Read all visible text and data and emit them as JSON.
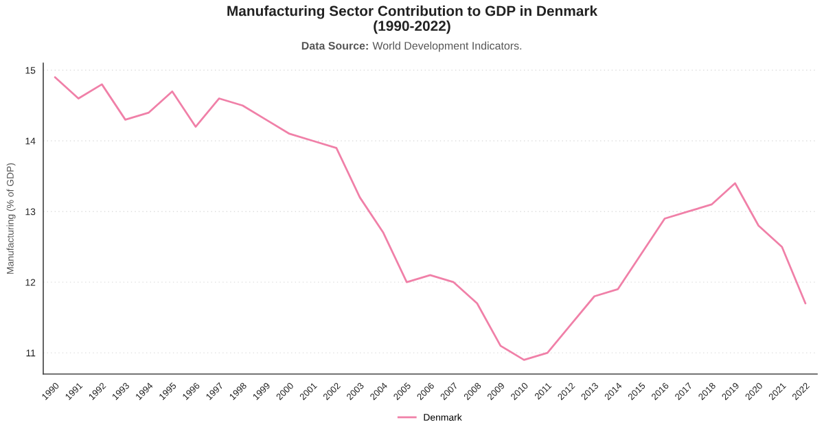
{
  "chart_data": {
    "type": "line",
    "title": "Manufacturing Sector Contribution to GDP in Denmark\n(1990-2022)",
    "subtitle": "Data Source: World Development Indicators.",
    "ylabel": "Manufacturing (% of GDP)",
    "categories": [
      "1990",
      "1991",
      "1992",
      "1993",
      "1994",
      "1995",
      "1996",
      "1997",
      "1998",
      "1999",
      "2000",
      "2001",
      "2002",
      "2003",
      "2004",
      "2005",
      "2006",
      "2007",
      "2008",
      "2009",
      "2010",
      "2011",
      "2012",
      "2013",
      "2014",
      "2015",
      "2016",
      "2017",
      "2018",
      "2019",
      "2020",
      "2021",
      "2022"
    ],
    "series": [
      {
        "name": "Denmark",
        "color": "#f080a8",
        "values": [
          14.9,
          14.6,
          14.8,
          14.3,
          14.4,
          14.7,
          14.2,
          14.6,
          14.5,
          14.3,
          14.1,
          14.0,
          13.9,
          13.2,
          12.7,
          12.0,
          12.1,
          12.0,
          11.7,
          11.1,
          10.9,
          11.0,
          11.4,
          11.8,
          11.9,
          12.4,
          12.9,
          13.0,
          13.1,
          13.4,
          12.8,
          12.5,
          11.7
        ]
      }
    ],
    "ylim": [
      10.7,
      15.1
    ],
    "yticks": [
      11,
      12,
      13,
      14,
      15
    ],
    "grid": "y",
    "legend": "bottom",
    "marker": "none",
    "line_style": "solid"
  }
}
